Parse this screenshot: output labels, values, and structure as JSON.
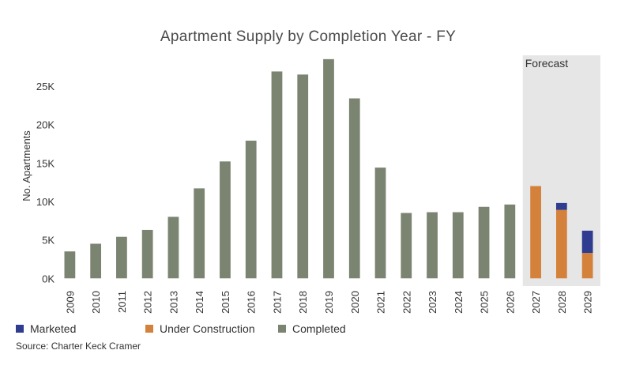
{
  "colors": {
    "completed": "#7b8471",
    "under_construction": "#d4823b",
    "marketed": "#2f3c8f",
    "forecast_band": "#e6e6e6"
  },
  "source": "Source: Charter Keck Cramer",
  "chart_data": {
    "type": "bar",
    "stacked": true,
    "title": "Apartment Supply by Completion Year - FY",
    "xlabel": "",
    "ylabel": "No. Apartments",
    "ylim": [
      -1000,
      29000
    ],
    "yticks": [
      0,
      5000,
      10000,
      15000,
      20000,
      25000
    ],
    "ytick_labels": [
      "0K",
      "5K",
      "10K",
      "15K",
      "20K",
      "25K"
    ],
    "grid": false,
    "legend_position": "bottom-left",
    "forecast": {
      "label": "Forecast",
      "start_category": "2027",
      "end_category": "2029"
    },
    "categories": [
      "2009",
      "2010",
      "2011",
      "2012",
      "2013",
      "2014",
      "2015",
      "2016",
      "2017",
      "2018",
      "2019",
      "2020",
      "2021",
      "2022",
      "2023",
      "2024",
      "2025",
      "2026",
      "2027",
      "2028",
      "2029"
    ],
    "series": [
      {
        "name": "Completed",
        "color_key": "completed",
        "values": [
          3500,
          4500,
          5400,
          6300,
          8000,
          11700,
          15200,
          17900,
          26900,
          26500,
          28500,
          23400,
          14400,
          8500,
          8600,
          8600,
          9300,
          9600,
          0,
          0,
          0
        ]
      },
      {
        "name": "Under Construction",
        "color_key": "under_construction",
        "values": [
          0,
          0,
          0,
          0,
          0,
          0,
          0,
          0,
          0,
          0,
          0,
          0,
          0,
          0,
          0,
          0,
          0,
          0,
          12000,
          8900,
          3300
        ]
      },
      {
        "name": "Marketed",
        "color_key": "marketed",
        "values": [
          0,
          0,
          0,
          0,
          0,
          0,
          0,
          0,
          0,
          0,
          0,
          0,
          0,
          0,
          0,
          0,
          0,
          0,
          0,
          900,
          2900
        ]
      }
    ]
  }
}
